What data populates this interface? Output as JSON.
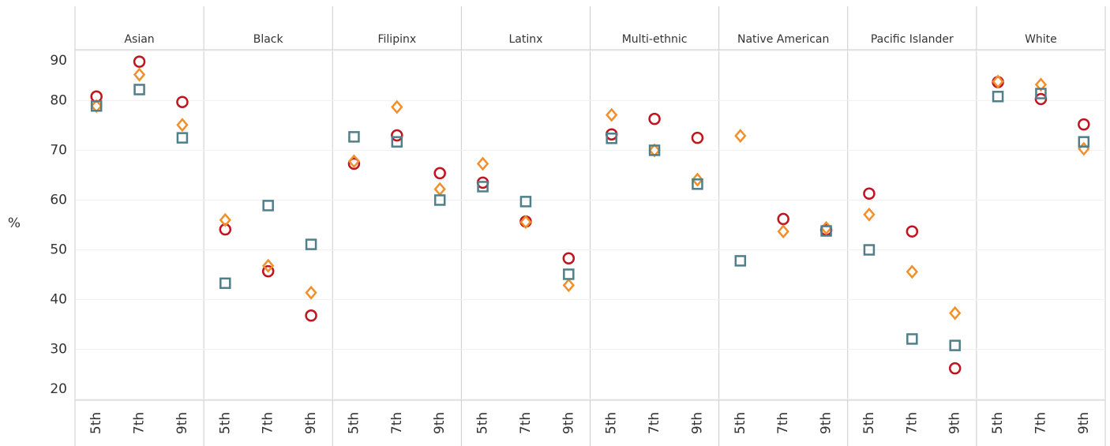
{
  "chart_data": {
    "type": "dot",
    "ylabel": "%",
    "panels": [
      "Asian",
      "Black",
      "Filipinx",
      "Latinx",
      "Multi-ethnic",
      "Native American",
      "Pacific Islander",
      "White"
    ],
    "categories": [
      "5th",
      "7th",
      "9th"
    ],
    "series": [
      {
        "marker": "circle",
        "color": "#c0141e",
        "values": [
          [
            80.8,
            87.8,
            79.7
          ],
          [
            54.1,
            45.7,
            36.8
          ],
          [
            67.3,
            73.0,
            65.4
          ],
          [
            63.5,
            55.7,
            48.3
          ],
          [
            73.2,
            76.3,
            72.5
          ],
          [
            null,
            56.2,
            54.0
          ],
          [
            61.3,
            53.7,
            26.2
          ],
          [
            83.7,
            80.3,
            75.2
          ]
        ]
      },
      {
        "marker": "diamond",
        "color": "#f28e2b",
        "values": [
          [
            78.9,
            85.2,
            75.1
          ],
          [
            56.0,
            46.8,
            41.4
          ],
          [
            67.8,
            78.7,
            62.2
          ],
          [
            67.3,
            55.6,
            42.9
          ],
          [
            77.1,
            70.0,
            64.1
          ],
          [
            72.9,
            53.7,
            54.4
          ],
          [
            57.1,
            45.6,
            37.3
          ],
          [
            83.8,
            83.2,
            70.3
          ]
        ]
      },
      {
        "marker": "square",
        "color": "#4e7f8a",
        "values": [
          [
            78.9,
            82.2,
            72.5
          ],
          [
            43.3,
            58.9,
            51.1
          ],
          [
            72.7,
            71.7,
            60.0
          ],
          [
            62.7,
            59.7,
            45.1
          ],
          [
            72.4,
            70.0,
            63.2
          ],
          [
            47.8,
            null,
            53.8
          ],
          [
            50.0,
            32.1,
            30.8
          ],
          [
            80.8,
            81.4,
            71.7
          ]
        ]
      }
    ],
    "ylim": [
      19.8,
      90.2
    ],
    "yticks": [
      20,
      30,
      40,
      50,
      60,
      70,
      80,
      90
    ],
    "grid": true
  }
}
